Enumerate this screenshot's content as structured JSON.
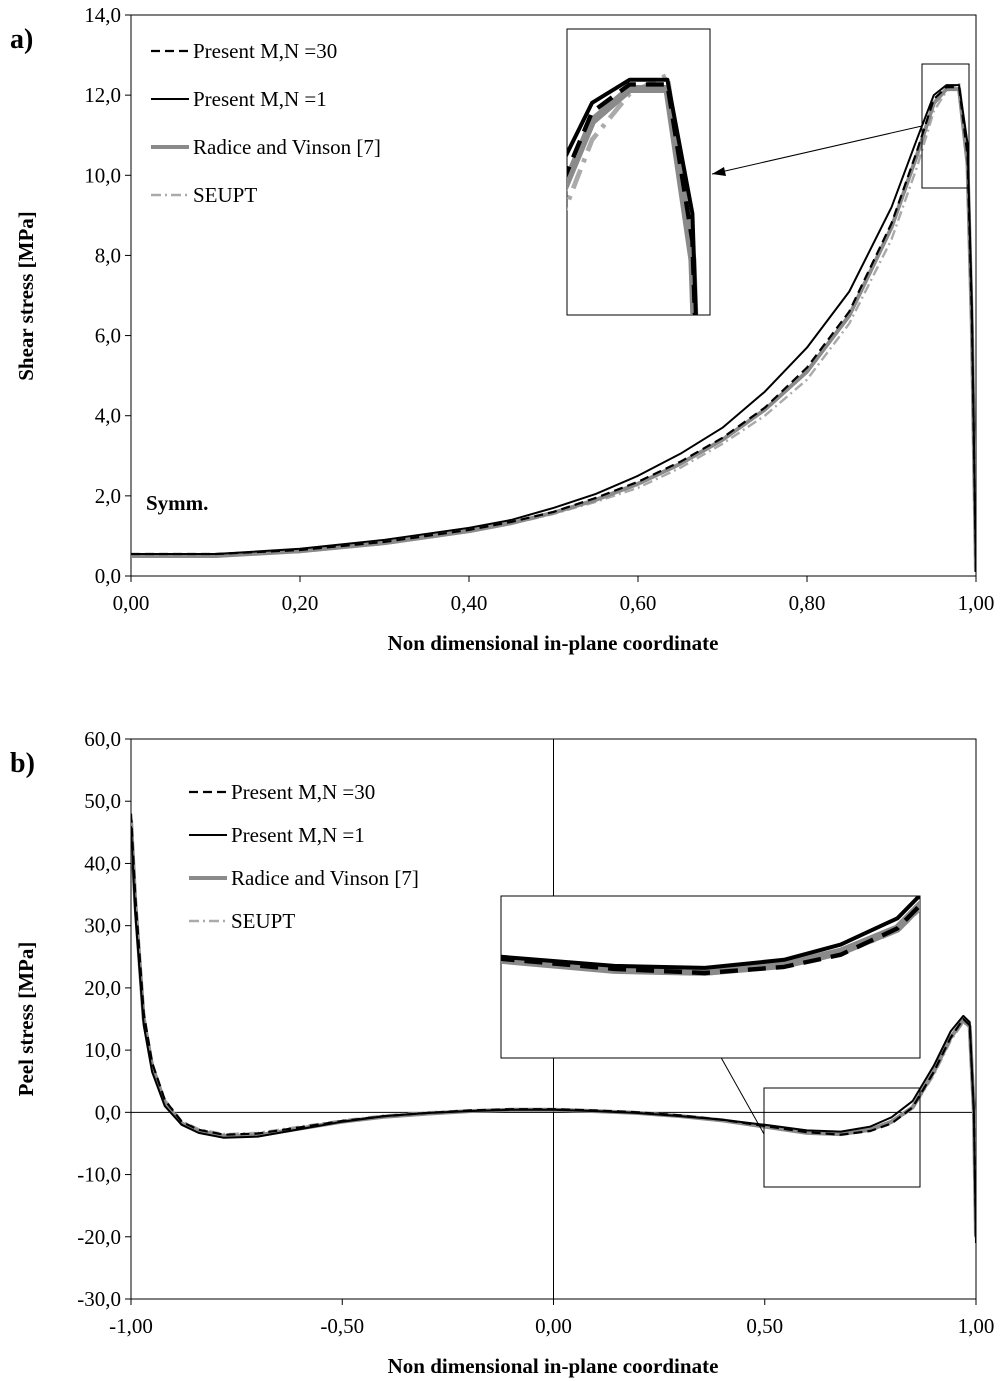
{
  "chart_data": [
    {
      "type": "line",
      "panel_label": "a)",
      "xlabel": "Non dimensional in-plane coordinate",
      "ylabel": "Shear stress [MPa]",
      "xlim": [
        0,
        1
      ],
      "ylim": [
        0,
        14
      ],
      "x_ticks": [
        "0,00",
        "0,20",
        "0,40",
        "0,60",
        "0,80",
        "1,00"
      ],
      "x_tick_values": [
        0,
        0.2,
        0.4,
        0.6,
        0.8,
        1.0
      ],
      "y_ticks": [
        "0,0",
        "2,0",
        "4,0",
        "6,0",
        "8,0",
        "10,0",
        "12,0",
        "14,0"
      ],
      "y_tick_values": [
        0,
        2,
        4,
        6,
        8,
        10,
        12,
        14
      ],
      "annotation": "Symm.",
      "legend_position": "top-left",
      "zoom_region": {
        "x": [
          0.94,
          0.997
        ],
        "y": [
          9.7,
          12.8
        ]
      },
      "series": [
        {
          "name": "Present M,N =30",
          "style": "dashed",
          "color": "#000000",
          "x": [
            0,
            0.1,
            0.2,
            0.3,
            0.4,
            0.45,
            0.5,
            0.55,
            0.6,
            0.65,
            0.7,
            0.75,
            0.8,
            0.85,
            0.9,
            0.93,
            0.95,
            0.965,
            0.98,
            0.99,
            0.995,
            1.0
          ],
          "y": [
            0.55,
            0.55,
            0.65,
            0.85,
            1.15,
            1.35,
            1.6,
            1.95,
            2.35,
            2.85,
            3.45,
            4.2,
            5.2,
            6.6,
            8.8,
            10.6,
            11.9,
            12.2,
            12.2,
            10.5,
            6.5,
            0.1
          ]
        },
        {
          "name": "Present M,N =1",
          "style": "solid",
          "color": "#000000",
          "x": [
            0,
            0.1,
            0.2,
            0.3,
            0.4,
            0.45,
            0.5,
            0.55,
            0.6,
            0.65,
            0.7,
            0.75,
            0.8,
            0.85,
            0.9,
            0.93,
            0.95,
            0.965,
            0.98,
            0.99,
            0.995,
            1.0
          ],
          "y": [
            0.55,
            0.55,
            0.68,
            0.9,
            1.2,
            1.4,
            1.7,
            2.05,
            2.5,
            3.05,
            3.7,
            4.6,
            5.7,
            7.1,
            9.2,
            10.9,
            12.0,
            12.25,
            12.25,
            10.8,
            6.8,
            0.1
          ]
        },
        {
          "name": "Radice and Vinson [7]",
          "style": "thick-gray",
          "color": "#8a8a8a",
          "x": [
            0,
            0.1,
            0.2,
            0.3,
            0.4,
            0.45,
            0.5,
            0.55,
            0.6,
            0.65,
            0.7,
            0.75,
            0.8,
            0.85,
            0.9,
            0.93,
            0.95,
            0.965,
            0.98,
            0.99,
            0.995,
            1.0
          ],
          "y": [
            0.5,
            0.5,
            0.62,
            0.82,
            1.12,
            1.32,
            1.58,
            1.9,
            2.3,
            2.8,
            3.4,
            4.15,
            5.1,
            6.5,
            8.7,
            10.5,
            11.8,
            12.15,
            12.15,
            10.3,
            6.3,
            0.1
          ]
        },
        {
          "name": "SEUPT",
          "style": "dashdot-gray",
          "color": "#aaaaaa",
          "x": [
            0,
            0.1,
            0.2,
            0.3,
            0.4,
            0.45,
            0.5,
            0.55,
            0.6,
            0.65,
            0.7,
            0.75,
            0.8,
            0.85,
            0.9,
            0.93,
            0.95,
            0.965,
            0.98,
            0.99,
            0.995,
            1.0
          ],
          "y": [
            0.5,
            0.5,
            0.6,
            0.8,
            1.1,
            1.3,
            1.55,
            1.85,
            2.2,
            2.7,
            3.3,
            4.0,
            4.9,
            6.3,
            8.4,
            10.2,
            11.6,
            12.1,
            12.3,
            10.2,
            6.0,
            0.1
          ]
        }
      ]
    },
    {
      "type": "line",
      "panel_label": "b)",
      "xlabel": "Non dimensional in-plane coordinate",
      "ylabel": "Peel stress [MPa]",
      "xlim": [
        -1,
        1
      ],
      "ylim": [
        -30,
        60
      ],
      "x_ticks": [
        "-1,00",
        "-0,50",
        "0,00",
        "0,50",
        "1,00"
      ],
      "x_tick_values": [
        -1,
        -0.5,
        0,
        0.5,
        1
      ],
      "y_ticks": [
        "-30,0",
        "-20,0",
        "-10,0",
        "0,0",
        "10,0",
        "20,0",
        "30,0",
        "40,0",
        "50,0",
        "60,0"
      ],
      "y_tick_values": [
        -30,
        -20,
        -10,
        0,
        10,
        20,
        30,
        40,
        50,
        60
      ],
      "legend_position": "top-left",
      "zoom_region": {
        "x": [
          0.5,
          0.87
        ],
        "y": [
          -12,
          4
        ]
      },
      "series": [
        {
          "name": "Present M,N =30",
          "style": "dashed",
          "color": "#000000",
          "x": [
            -1.0,
            -0.99,
            -0.97,
            -0.95,
            -0.92,
            -0.88,
            -0.84,
            -0.78,
            -0.7,
            -0.6,
            -0.5,
            -0.4,
            -0.3,
            -0.2,
            -0.1,
            0.0,
            0.1,
            0.2,
            0.3,
            0.4,
            0.5,
            0.6,
            0.68,
            0.75,
            0.8,
            0.85,
            0.9,
            0.94,
            0.97,
            0.985,
            0.995,
            1.0
          ],
          "y": [
            48,
            35,
            16,
            8,
            2,
            -1.5,
            -2.8,
            -3.6,
            -3.4,
            -2.4,
            -1.4,
            -0.6,
            -0.1,
            0.3,
            0.5,
            0.5,
            0.3,
            0.0,
            -0.5,
            -1.2,
            -2.2,
            -3.2,
            -3.6,
            -3.0,
            -1.8,
            0.8,
            6.5,
            12.0,
            15.0,
            14.0,
            0.0,
            -20
          ]
        },
        {
          "name": "Present M,N =1",
          "style": "solid",
          "color": "#000000",
          "x": [
            -1.0,
            -0.99,
            -0.97,
            -0.95,
            -0.92,
            -0.88,
            -0.84,
            -0.78,
            -0.7,
            -0.6,
            -0.5,
            -0.4,
            -0.3,
            -0.2,
            -0.1,
            0.0,
            0.1,
            0.2,
            0.3,
            0.4,
            0.5,
            0.6,
            0.68,
            0.75,
            0.8,
            0.85,
            0.9,
            0.94,
            0.97,
            0.985,
            0.995,
            1.0
          ],
          "y": [
            46,
            32,
            14,
            6.5,
            1.0,
            -2.0,
            -3.3,
            -4.1,
            -3.9,
            -2.7,
            -1.5,
            -0.6,
            -0.1,
            0.2,
            0.4,
            0.4,
            0.2,
            -0.1,
            -0.6,
            -1.2,
            -2.0,
            -2.9,
            -3.1,
            -2.3,
            -0.8,
            1.8,
            7.5,
            13.0,
            15.5,
            14.5,
            0.0,
            -21
          ]
        },
        {
          "name": "Radice and Vinson [7]",
          "style": "thick-gray",
          "color": "#8a8a8a",
          "x": [
            -1.0,
            -0.99,
            -0.97,
            -0.95,
            -0.92,
            -0.88,
            -0.84,
            -0.78,
            -0.7,
            -0.6,
            -0.5,
            -0.4,
            -0.3,
            -0.2,
            -0.1,
            0.0,
            0.1,
            0.2,
            0.3,
            0.4,
            0.5,
            0.6,
            0.68,
            0.75,
            0.8,
            0.85,
            0.9,
            0.94,
            0.97,
            0.985,
            0.995,
            1.0
          ],
          "y": [
            47,
            34,
            15,
            7.5,
            1.5,
            -1.8,
            -3.0,
            -3.8,
            -3.7,
            -2.6,
            -1.5,
            -0.7,
            -0.2,
            0.2,
            0.4,
            0.4,
            0.2,
            -0.1,
            -0.6,
            -1.3,
            -2.3,
            -3.3,
            -3.5,
            -2.8,
            -1.5,
            0.8,
            6.5,
            12.0,
            14.8,
            13.8,
            0.0,
            -20
          ]
        },
        {
          "name": "SEUPT",
          "style": "dashdot-gray",
          "color": "#aaaaaa",
          "x": [
            -1.0,
            -0.99,
            -0.97,
            -0.95,
            -0.92,
            -0.88,
            -0.84,
            -0.78,
            -0.7,
            -0.6,
            -0.5,
            -0.4,
            -0.3,
            -0.2,
            -0.1,
            0.0,
            0.1,
            0.2,
            0.3,
            0.4,
            0.5,
            0.6,
            0.68,
            0.75,
            0.8,
            0.85,
            0.9,
            0.94,
            0.97,
            0.985,
            0.995,
            1.0
          ],
          "y": [
            47,
            34,
            16,
            8,
            2,
            -1.4,
            -2.7,
            -3.5,
            -3.3,
            -2.3,
            -1.3,
            -0.5,
            0.0,
            0.3,
            0.5,
            0.5,
            0.3,
            0.0,
            -0.5,
            -1.2,
            -2.1,
            -3.1,
            -3.4,
            -2.9,
            -1.7,
            0.6,
            6.0,
            11.5,
            14.5,
            13.5,
            0.0,
            -20
          ]
        }
      ]
    }
  ]
}
